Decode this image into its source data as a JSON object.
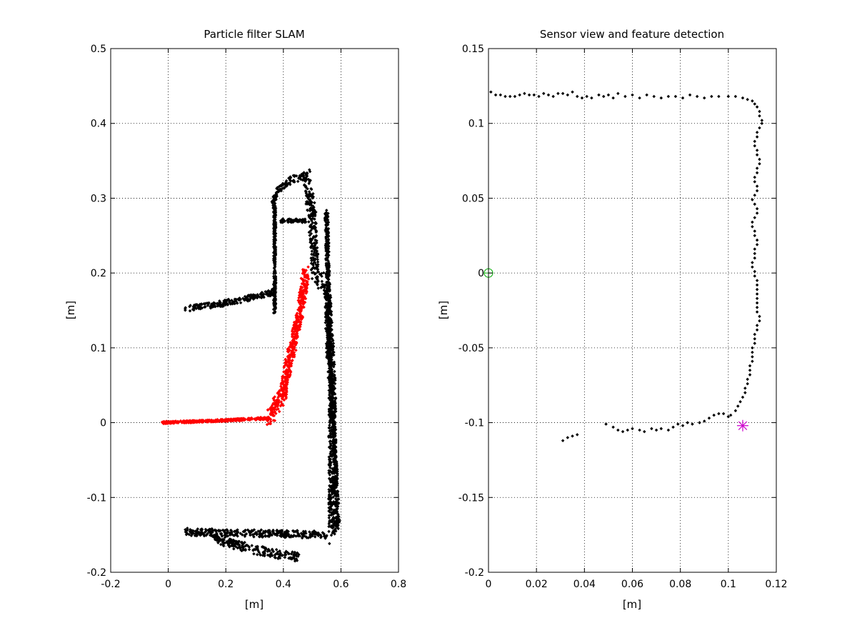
{
  "chart_data": [
    {
      "type": "scatter",
      "title": "Particle filter SLAM",
      "xlabel": "[m]",
      "ylabel": "[m]",
      "xlim": [
        -0.2,
        0.8
      ],
      "ylim": [
        -0.2,
        0.5
      ],
      "xticks": [
        "-0.2",
        "0",
        "0.2",
        "0.4",
        "0.6",
        "0.8"
      ],
      "yticks": [
        "-0.2",
        "-0.1",
        "0",
        "0.1",
        "0.2",
        "0.3",
        "0.4",
        "0.5"
      ],
      "grid": true,
      "colors": {
        "map_points": "#000000",
        "particles": "#ff0000"
      },
      "regions": {
        "map_points": [
          {
            "shape": "band",
            "pts": [
              [
                0.06,
                0.152
              ],
              [
                0.2,
                0.16
              ],
              [
                0.3,
                0.168
              ],
              [
                0.37,
                0.175
              ]
            ],
            "spread": 0.008
          },
          {
            "shape": "band",
            "pts": [
              [
                0.37,
                0.15
              ],
              [
                0.37,
                0.29
              ]
            ],
            "spread": 0.008
          },
          {
            "shape": "band",
            "pts": [
              [
                0.36,
                0.29
              ],
              [
                0.38,
                0.31
              ],
              [
                0.43,
                0.325
              ],
              [
                0.48,
                0.33
              ]
            ],
            "spread": 0.01
          },
          {
            "shape": "band",
            "pts": [
              [
                0.39,
                0.27
              ],
              [
                0.48,
                0.27
              ]
            ],
            "spread": 0.005
          },
          {
            "shape": "band",
            "pts": [
              [
                0.48,
                0.33
              ],
              [
                0.5,
                0.28
              ],
              [
                0.51,
                0.2
              ],
              [
                0.55,
                0.18
              ],
              [
                0.57,
                0.05
              ],
              [
                0.57,
                -0.15
              ]
            ],
            "spread": 0.025
          },
          {
            "shape": "band",
            "pts": [
              [
                0.55,
                0.28
              ],
              [
                0.56,
                0.1
              ],
              [
                0.58,
                -0.05
              ],
              [
                0.59,
                -0.14
              ]
            ],
            "spread": 0.012
          },
          {
            "shape": "band",
            "pts": [
              [
                0.06,
                -0.146
              ],
              [
                0.3,
                -0.148
              ],
              [
                0.55,
                -0.15
              ]
            ],
            "spread": 0.01
          },
          {
            "shape": "band",
            "pts": [
              [
                0.15,
                -0.155
              ],
              [
                0.3,
                -0.17
              ],
              [
                0.45,
                -0.18
              ]
            ],
            "spread": 0.012
          }
        ],
        "particles": [
          {
            "shape": "band",
            "pts": [
              [
                -0.02,
                0.0
              ],
              [
                0.2,
                0.003
              ],
              [
                0.35,
                0.006
              ]
            ],
            "spread": 0.003
          },
          {
            "shape": "band",
            "pts": [
              [
                0.35,
                0.006
              ],
              [
                0.4,
                0.04
              ],
              [
                0.43,
                0.1
              ],
              [
                0.46,
                0.15
              ],
              [
                0.48,
                0.2
              ]
            ],
            "spread": 0.022
          }
        ]
      }
    },
    {
      "type": "scatter",
      "title": "Sensor view and feature detection",
      "xlabel": "[m]",
      "ylabel": "[m]",
      "xlim": [
        0,
        0.12
      ],
      "ylim": [
        -0.2,
        0.15
      ],
      "xticks": [
        "0",
        "0.02",
        "0.04",
        "0.06",
        "0.08",
        "0.1",
        "0.12"
      ],
      "yticks": [
        "-0.2",
        "-0.15",
        "-0.1",
        "-0.05",
        "0",
        "0.05",
        "0.1",
        "0.15"
      ],
      "grid": true,
      "colors": {
        "scan_points": "#000000",
        "origin_marker": "#00aa00",
        "feature_marker": "#cc00cc"
      },
      "origin_marker": {
        "x": 0.0,
        "y": 0.0,
        "symbol": "circle-plus"
      },
      "feature_marker": {
        "x": 0.106,
        "y": -0.102,
        "symbol": "asterisk"
      },
      "scan_points": [
        [
          0.001,
          0.121
        ],
        [
          0.003,
          0.119
        ],
        [
          0.005,
          0.119
        ],
        [
          0.007,
          0.118
        ],
        [
          0.009,
          0.118
        ],
        [
          0.011,
          0.118
        ],
        [
          0.013,
          0.119
        ],
        [
          0.015,
          0.12
        ],
        [
          0.017,
          0.119
        ],
        [
          0.019,
          0.119
        ],
        [
          0.021,
          0.118
        ],
        [
          0.023,
          0.12
        ],
        [
          0.025,
          0.119
        ],
        [
          0.027,
          0.118
        ],
        [
          0.029,
          0.12
        ],
        [
          0.031,
          0.12
        ],
        [
          0.033,
          0.119
        ],
        [
          0.035,
          0.121
        ],
        [
          0.037,
          0.118
        ],
        [
          0.039,
          0.117
        ],
        [
          0.041,
          0.118
        ],
        [
          0.043,
          0.117
        ],
        [
          0.046,
          0.119
        ],
        [
          0.048,
          0.118
        ],
        [
          0.05,
          0.119
        ],
        [
          0.052,
          0.117
        ],
        [
          0.054,
          0.12
        ],
        [
          0.057,
          0.118
        ],
        [
          0.06,
          0.119
        ],
        [
          0.063,
          0.117
        ],
        [
          0.066,
          0.119
        ],
        [
          0.069,
          0.118
        ],
        [
          0.072,
          0.117
        ],
        [
          0.075,
          0.118
        ],
        [
          0.078,
          0.118
        ],
        [
          0.081,
          0.117
        ],
        [
          0.084,
          0.119
        ],
        [
          0.087,
          0.118
        ],
        [
          0.09,
          0.117
        ],
        [
          0.093,
          0.118
        ],
        [
          0.096,
          0.118
        ],
        [
          0.1,
          0.118
        ],
        [
          0.103,
          0.118
        ],
        [
          0.106,
          0.117
        ],
        [
          0.108,
          0.116
        ],
        [
          0.11,
          0.115
        ],
        [
          0.111,
          0.113
        ],
        [
          0.112,
          0.111
        ],
        [
          0.113,
          0.108
        ],
        [
          0.113,
          0.105
        ],
        [
          0.114,
          0.102
        ],
        [
          0.114,
          0.1
        ],
        [
          0.113,
          0.097
        ],
        [
          0.112,
          0.094
        ],
        [
          0.112,
          0.091
        ],
        [
          0.111,
          0.088
        ],
        [
          0.111,
          0.085
        ],
        [
          0.112,
          0.082
        ],
        [
          0.112,
          0.079
        ],
        [
          0.113,
          0.076
        ],
        [
          0.113,
          0.073
        ],
        [
          0.112,
          0.07
        ],
        [
          0.112,
          0.067
        ],
        [
          0.111,
          0.064
        ],
        [
          0.111,
          0.061
        ],
        [
          0.112,
          0.058
        ],
        [
          0.112,
          0.055
        ],
        [
          0.111,
          0.052
        ],
        [
          0.11,
          0.049
        ],
        [
          0.111,
          0.046
        ],
        [
          0.112,
          0.043
        ],
        [
          0.112,
          0.04
        ],
        [
          0.111,
          0.037
        ],
        [
          0.11,
          0.034
        ],
        [
          0.11,
          0.031
        ],
        [
          0.111,
          0.028
        ],
        [
          0.111,
          0.025
        ],
        [
          0.112,
          0.022
        ],
        [
          0.112,
          0.019
        ],
        [
          0.111,
          0.016
        ],
        [
          0.111,
          0.013
        ],
        [
          0.111,
          0.01
        ],
        [
          0.11,
          0.007
        ],
        [
          0.11,
          0.004
        ],
        [
          0.111,
          0.001
        ],
        [
          0.111,
          -0.002
        ],
        [
          0.112,
          -0.005
        ],
        [
          0.112,
          -0.008
        ],
        [
          0.112,
          -0.011
        ],
        [
          0.112,
          -0.014
        ],
        [
          0.112,
          -0.017
        ],
        [
          0.112,
          -0.02
        ],
        [
          0.112,
          -0.023
        ],
        [
          0.112,
          -0.026
        ],
        [
          0.113,
          -0.029
        ],
        [
          0.113,
          -0.032
        ],
        [
          0.112,
          -0.035
        ],
        [
          0.112,
          -0.038
        ],
        [
          0.111,
          -0.041
        ],
        [
          0.111,
          -0.044
        ],
        [
          0.111,
          -0.047
        ],
        [
          0.11,
          -0.05
        ],
        [
          0.11,
          -0.053
        ],
        [
          0.11,
          -0.056
        ],
        [
          0.11,
          -0.059
        ],
        [
          0.109,
          -0.062
        ],
        [
          0.109,
          -0.065
        ],
        [
          0.109,
          -0.068
        ],
        [
          0.108,
          -0.071
        ],
        [
          0.108,
          -0.074
        ],
        [
          0.107,
          -0.077
        ],
        [
          0.107,
          -0.08
        ],
        [
          0.106,
          -0.083
        ],
        [
          0.105,
          -0.086
        ],
        [
          0.104,
          -0.089
        ],
        [
          0.103,
          -0.092
        ],
        [
          0.101,
          -0.095
        ],
        [
          0.1,
          -0.096
        ],
        [
          0.098,
          -0.094
        ],
        [
          0.096,
          -0.094
        ],
        [
          0.094,
          -0.095
        ],
        [
          0.092,
          -0.097
        ],
        [
          0.09,
          -0.099
        ],
        [
          0.088,
          -0.1
        ],
        [
          0.085,
          -0.101
        ],
        [
          0.083,
          -0.1
        ],
        [
          0.081,
          -0.102
        ],
        [
          0.079,
          -0.101
        ],
        [
          0.077,
          -0.103
        ],
        [
          0.075,
          -0.105
        ],
        [
          0.072,
          -0.104
        ],
        [
          0.07,
          -0.105
        ],
        [
          0.068,
          -0.104
        ],
        [
          0.065,
          -0.106
        ],
        [
          0.063,
          -0.105
        ],
        [
          0.06,
          -0.104
        ],
        [
          0.058,
          -0.105
        ],
        [
          0.056,
          -0.106
        ],
        [
          0.054,
          -0.105
        ],
        [
          0.052,
          -0.103
        ],
        [
          0.049,
          -0.101
        ],
        [
          0.037,
          -0.108
        ],
        [
          0.035,
          -0.109
        ],
        [
          0.033,
          -0.11
        ],
        [
          0.031,
          -0.112
        ]
      ]
    }
  ]
}
